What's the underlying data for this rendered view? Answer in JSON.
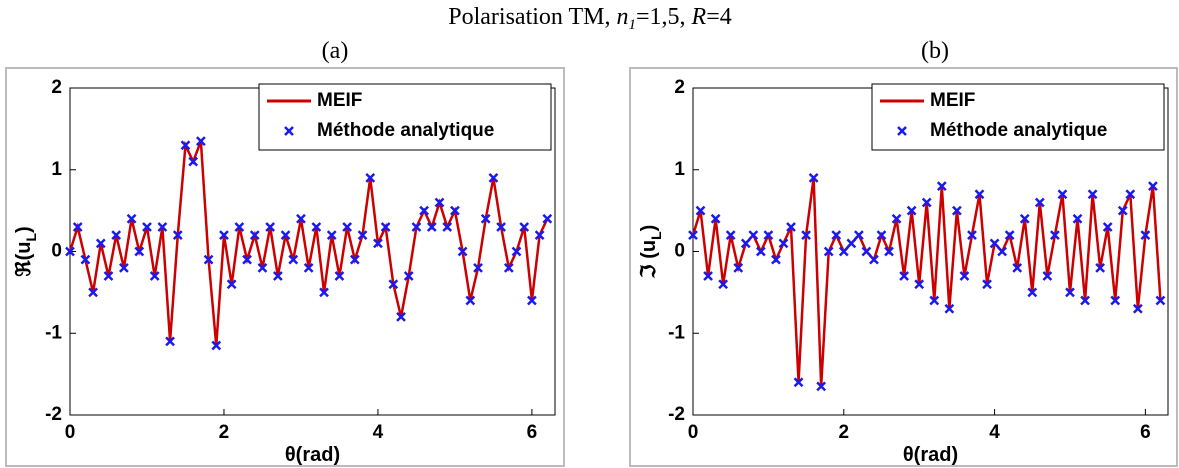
{
  "title_parts": [
    "Polarisation TM, ",
    "n",
    "1",
    "=1,5, ",
    "R",
    "=4"
  ],
  "chart_data": [
    {
      "type": "line",
      "panel_label": "(a)",
      "ylabel_parts": [
        "ℜ(u",
        "L",
        ")"
      ],
      "xlabel": "θ(rad)",
      "xlim": [
        0,
        6.3
      ],
      "xticks": [
        0,
        2,
        4,
        6
      ],
      "ylim": [
        -2,
        2
      ],
      "yticks": [
        -2,
        -1,
        0,
        1,
        2
      ],
      "legend": "upper right",
      "x": [
        0,
        0.1,
        0.2,
        0.3,
        0.4,
        0.5,
        0.6,
        0.7,
        0.8,
        0.9,
        1.0,
        1.1,
        1.2,
        1.3,
        1.4,
        1.5,
        1.6,
        1.7,
        1.8,
        1.9,
        2.0,
        2.1,
        2.2,
        2.3,
        2.4,
        2.5,
        2.6,
        2.7,
        2.8,
        2.9,
        3.0,
        3.1,
        3.2,
        3.3,
        3.4,
        3.5,
        3.6,
        3.7,
        3.8,
        3.9,
        4.0,
        4.1,
        4.2,
        4.3,
        4.4,
        4.5,
        4.6,
        4.7,
        4.8,
        4.9,
        5.0,
        5.1,
        5.2,
        5.3,
        5.4,
        5.5,
        5.6,
        5.7,
        5.8,
        5.9,
        6.0,
        6.1,
        6.2
      ],
      "series": [
        {
          "name": "MEIF",
          "style": "line",
          "color": "#cc0000",
          "values": [
            0,
            0.3,
            -0.1,
            -0.5,
            0.1,
            -0.3,
            0.2,
            -0.2,
            0.4,
            0,
            0.3,
            -0.3,
            0.3,
            -1.1,
            0.2,
            1.3,
            1.1,
            1.35,
            -0.1,
            -1.15,
            0.2,
            -0.4,
            0.3,
            -0.1,
            0.2,
            -0.2,
            0.3,
            -0.3,
            0.2,
            -0.1,
            0.4,
            -0.2,
            0.3,
            -0.5,
            0.2,
            -0.3,
            0.3,
            -0.1,
            0.2,
            0.9,
            0.1,
            0.3,
            -0.4,
            -0.8,
            -0.3,
            0.3,
            0.5,
            0.3,
            0.6,
            0.3,
            0.5,
            0,
            -0.6,
            -0.2,
            0.4,
            0.9,
            0.3,
            -0.2,
            0,
            0.3,
            -0.6,
            0.2,
            0.4
          ]
        },
        {
          "name": "Méthode analytique",
          "style": "markers",
          "color": "#1a1aee",
          "values": [
            0,
            0.3,
            -0.1,
            -0.5,
            0.1,
            -0.3,
            0.2,
            -0.2,
            0.4,
            0,
            0.3,
            -0.3,
            0.3,
            -1.1,
            0.2,
            1.3,
            1.1,
            1.35,
            -0.1,
            -1.15,
            0.2,
            -0.4,
            0.3,
            -0.1,
            0.2,
            -0.2,
            0.3,
            -0.3,
            0.2,
            -0.1,
            0.4,
            -0.2,
            0.3,
            -0.5,
            0.2,
            -0.3,
            0.3,
            -0.1,
            0.2,
            0.9,
            0.1,
            0.3,
            -0.4,
            -0.8,
            -0.3,
            0.3,
            0.5,
            0.3,
            0.6,
            0.3,
            0.5,
            0,
            -0.6,
            -0.2,
            0.4,
            0.9,
            0.3,
            -0.2,
            0,
            0.3,
            -0.6,
            0.2,
            0.4
          ]
        }
      ]
    },
    {
      "type": "line",
      "panel_label": "(b)",
      "ylabel_parts": [
        "ℑ (u",
        "L",
        ")"
      ],
      "xlabel": "θ(rad)",
      "xlim": [
        0,
        6.3
      ],
      "xticks": [
        0,
        2,
        4,
        6
      ],
      "ylim": [
        -2,
        2
      ],
      "yticks": [
        -2,
        -1,
        0,
        1,
        2
      ],
      "legend": "upper right",
      "x": [
        0,
        0.1,
        0.2,
        0.3,
        0.4,
        0.5,
        0.6,
        0.7,
        0.8,
        0.9,
        1.0,
        1.1,
        1.2,
        1.3,
        1.4,
        1.5,
        1.6,
        1.7,
        1.8,
        1.9,
        2.0,
        2.1,
        2.2,
        2.3,
        2.4,
        2.5,
        2.6,
        2.7,
        2.8,
        2.9,
        3.0,
        3.1,
        3.2,
        3.3,
        3.4,
        3.5,
        3.6,
        3.7,
        3.8,
        3.9,
        4.0,
        4.1,
        4.2,
        4.3,
        4.4,
        4.5,
        4.6,
        4.7,
        4.8,
        4.9,
        5.0,
        5.1,
        5.2,
        5.3,
        5.4,
        5.5,
        5.6,
        5.7,
        5.8,
        5.9,
        6.0,
        6.1,
        6.2
      ],
      "series": [
        {
          "name": "MEIF",
          "style": "line",
          "color": "#cc0000",
          "values": [
            0.2,
            0.5,
            -0.3,
            0.4,
            -0.4,
            0.2,
            -0.2,
            0.1,
            0.2,
            0,
            0.2,
            -0.1,
            0.1,
            0.3,
            -1.6,
            0.2,
            0.9,
            -1.65,
            0,
            0.2,
            0,
            0.1,
            0.2,
            0,
            -0.1,
            0.2,
            0,
            0.4,
            -0.3,
            0.5,
            -0.4,
            0.6,
            -0.6,
            0.8,
            -0.7,
            0.5,
            -0.3,
            0.2,
            0.7,
            -0.4,
            0.1,
            0,
            0.2,
            -0.2,
            0.4,
            -0.5,
            0.6,
            -0.3,
            0.2,
            0.7,
            -0.5,
            0.4,
            -0.6,
            0.7,
            -0.2,
            0.3,
            -0.6,
            0.5,
            0.7,
            -0.7,
            0.2,
            0.8,
            -0.6
          ]
        },
        {
          "name": "Méthode analytique",
          "style": "markers",
          "color": "#1a1aee",
          "values": [
            0.2,
            0.5,
            -0.3,
            0.4,
            -0.4,
            0.2,
            -0.2,
            0.1,
            0.2,
            0,
            0.2,
            -0.1,
            0.1,
            0.3,
            -1.6,
            0.2,
            0.9,
            -1.65,
            0,
            0.2,
            0,
            0.1,
            0.2,
            0,
            -0.1,
            0.2,
            0,
            0.4,
            -0.3,
            0.5,
            -0.4,
            0.6,
            -0.6,
            0.8,
            -0.7,
            0.5,
            -0.3,
            0.2,
            0.7,
            -0.4,
            0.1,
            0,
            0.2,
            -0.2,
            0.4,
            -0.5,
            0.6,
            -0.3,
            0.2,
            0.7,
            -0.5,
            0.4,
            -0.6,
            0.7,
            -0.2,
            0.3,
            -0.6,
            0.5,
            0.7,
            -0.7,
            0.2,
            0.8,
            -0.6
          ]
        }
      ]
    }
  ]
}
